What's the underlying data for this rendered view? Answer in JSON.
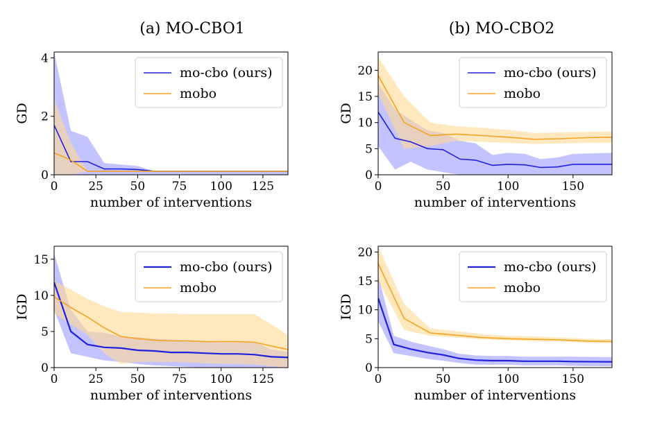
{
  "columns": [
    {
      "title": "(a) MO-CBO1"
    },
    {
      "title": "(b) MO-CBO2"
    }
  ],
  "colors": {
    "mo_cbo": "#1f1fe0",
    "mo_cbo_band": "#7b7bff",
    "mobo": "#f5a21f",
    "mobo_band": "#ffd992"
  },
  "chart_data": [
    {
      "type": "line",
      "panel": "a-top",
      "xlabel": "number of interventions",
      "ylabel": "GD",
      "xlim": [
        0,
        140
      ],
      "ylim": [
        0,
        4.2
      ],
      "xticks": [
        0,
        25,
        50,
        75,
        100,
        125
      ],
      "yticks": [
        0,
        2,
        4
      ],
      "legend": "top-right",
      "grid": false,
      "series": [
        {
          "name": "mo-cbo (ours)",
          "x": [
            0,
            10,
            20,
            30,
            40,
            50,
            60,
            140
          ],
          "values": [
            1.7,
            0.45,
            0.45,
            0.2,
            0.2,
            0.18,
            0.12,
            0.12
          ],
          "lower": [
            0.0,
            0.0,
            0.0,
            0.0,
            0.0,
            0.0,
            0.0,
            0.0
          ],
          "upper": [
            4.2,
            1.5,
            1.3,
            0.4,
            0.35,
            0.3,
            0.12,
            0.12
          ]
        },
        {
          "name": "mobo",
          "x": [
            0,
            10,
            20,
            30,
            40,
            50,
            60,
            140
          ],
          "values": [
            0.75,
            0.5,
            0.12,
            0.12,
            0.12,
            0.12,
            0.12,
            0.12
          ],
          "lower": [
            0.0,
            0.0,
            0.12,
            0.12,
            0.12,
            0.12,
            0.12,
            0.12
          ],
          "upper": [
            2.6,
            1.1,
            0.12,
            0.12,
            0.12,
            0.12,
            0.12,
            0.12
          ]
        }
      ]
    },
    {
      "type": "line",
      "panel": "b-top",
      "xlabel": "number of interventions",
      "ylabel": "GD",
      "xlim": [
        0,
        180
      ],
      "ylim": [
        0,
        23.5
      ],
      "xticks": [
        0,
        50,
        100,
        150
      ],
      "yticks": [
        0,
        5,
        10,
        15,
        20
      ],
      "legend": "top-right",
      "grid": false,
      "series": [
        {
          "name": "mo-cbo (ours)",
          "x": [
            0,
            13,
            25,
            38,
            50,
            63,
            75,
            88,
            100,
            113,
            125,
            138,
            150,
            180
          ],
          "values": [
            12.0,
            7.0,
            6.3,
            5.0,
            4.8,
            3.0,
            2.8,
            1.8,
            2.0,
            1.9,
            1.4,
            1.5,
            2.0,
            2.0
          ],
          "lower": [
            5.5,
            1.0,
            2.5,
            1.0,
            0.5,
            0.0,
            0.0,
            0.0,
            0.0,
            0.0,
            0.0,
            0.0,
            0.0,
            0.0
          ],
          "upper": [
            17.5,
            12.5,
            10.5,
            8.5,
            8.0,
            6.5,
            6.0,
            3.8,
            4.2,
            4.0,
            3.0,
            3.3,
            4.0,
            4.2
          ]
        },
        {
          "name": "mobo",
          "x": [
            0,
            20,
            40,
            60,
            80,
            100,
            120,
            140,
            160,
            180
          ],
          "values": [
            19.0,
            10.0,
            7.5,
            7.8,
            7.5,
            7.2,
            6.8,
            6.9,
            7.1,
            7.2
          ],
          "lower": [
            15.5,
            5.0,
            5.5,
            6.5,
            6.3,
            6.1,
            5.9,
            6.0,
            6.1,
            6.1
          ],
          "upper": [
            22.5,
            15.0,
            10.0,
            9.3,
            9.0,
            8.6,
            8.0,
            8.1,
            8.2,
            8.3
          ]
        }
      ]
    },
    {
      "type": "line",
      "panel": "a-bottom",
      "xlabel": "number of interventions",
      "ylabel": "IGD",
      "xlim": [
        0,
        140
      ],
      "ylim": [
        0,
        16.8
      ],
      "xticks": [
        0,
        25,
        50,
        75,
        100,
        125
      ],
      "yticks": [
        0,
        5,
        10,
        15
      ],
      "legend": "top-right",
      "grid": false,
      "series": [
        {
          "name": "mo-cbo (ours)",
          "x": [
            0,
            10,
            20,
            30,
            40,
            50,
            60,
            70,
            80,
            90,
            100,
            110,
            120,
            130,
            140
          ],
          "values": [
            11.8,
            5.0,
            3.2,
            2.8,
            2.7,
            2.4,
            2.3,
            2.1,
            2.1,
            2.0,
            1.9,
            1.9,
            1.8,
            1.5,
            1.4
          ],
          "lower": [
            8.0,
            2.0,
            1.5,
            1.0,
            0.8,
            0.5,
            0.3,
            0.2,
            0.1,
            0.0,
            0.0,
            0.0,
            0.0,
            0.0,
            0.0
          ],
          "upper": [
            15.8,
            8.0,
            5.0,
            4.8,
            4.3,
            4.2,
            4.0,
            3.9,
            3.8,
            3.7,
            3.5,
            3.5,
            3.6,
            2.5,
            2.2
          ]
        },
        {
          "name": "mobo",
          "x": [
            0,
            10,
            20,
            30,
            40,
            50,
            60,
            70,
            80,
            90,
            100,
            110,
            120,
            130,
            140
          ],
          "values": [
            9.8,
            8.3,
            7.0,
            5.5,
            4.3,
            4.0,
            3.8,
            3.7,
            3.7,
            3.6,
            3.6,
            3.6,
            3.5,
            3.0,
            2.5
          ],
          "lower": [
            7.5,
            6.0,
            4.5,
            2.0,
            0.5,
            0.8,
            0.8,
            0.8,
            0.7,
            0.6,
            0.5,
            0.5,
            0.4,
            0.2,
            0.0
          ],
          "upper": [
            12.0,
            10.8,
            9.5,
            8.5,
            7.7,
            7.6,
            7.5,
            7.5,
            7.4,
            7.4,
            7.4,
            7.4,
            7.4,
            6.0,
            4.5
          ]
        }
      ]
    },
    {
      "type": "line",
      "panel": "b-bottom",
      "xlabel": "number of interventions",
      "ylabel": "IGD",
      "xlim": [
        0,
        180
      ],
      "ylim": [
        0,
        21
      ],
      "xticks": [
        0,
        50,
        100,
        150
      ],
      "yticks": [
        0,
        5,
        10,
        15,
        20
      ],
      "legend": "top-right",
      "grid": false,
      "series": [
        {
          "name": "mo-cbo (ours)",
          "x": [
            0,
            12,
            25,
            38,
            50,
            62,
            75,
            88,
            100,
            112,
            125,
            138,
            150,
            180
          ],
          "values": [
            12.0,
            4.0,
            3.2,
            2.6,
            2.2,
            1.6,
            1.3,
            1.2,
            1.2,
            1.1,
            1.1,
            1.1,
            1.05,
            1.0
          ],
          "lower": [
            8.0,
            2.5,
            2.0,
            1.5,
            1.2,
            0.8,
            0.5,
            0.5,
            0.5,
            0.4,
            0.4,
            0.4,
            0.3,
            0.2
          ],
          "upper": [
            16.0,
            5.5,
            4.5,
            3.8,
            3.2,
            2.4,
            2.1,
            2.0,
            2.0,
            1.9,
            1.9,
            1.9,
            1.9,
            1.8
          ]
        },
        {
          "name": "mobo",
          "x": [
            0,
            20,
            40,
            60,
            80,
            100,
            120,
            140,
            160,
            180
          ],
          "values": [
            18.0,
            8.5,
            6.0,
            5.6,
            5.2,
            5.0,
            4.9,
            4.8,
            4.6,
            4.5
          ],
          "lower": [
            15.0,
            6.5,
            5.5,
            5.2,
            4.9,
            4.7,
            4.6,
            4.5,
            4.3,
            4.2
          ],
          "upper": [
            21.0,
            11.0,
            6.8,
            6.3,
            5.8,
            5.5,
            5.4,
            5.2,
            5.0,
            4.9
          ]
        }
      ]
    }
  ]
}
